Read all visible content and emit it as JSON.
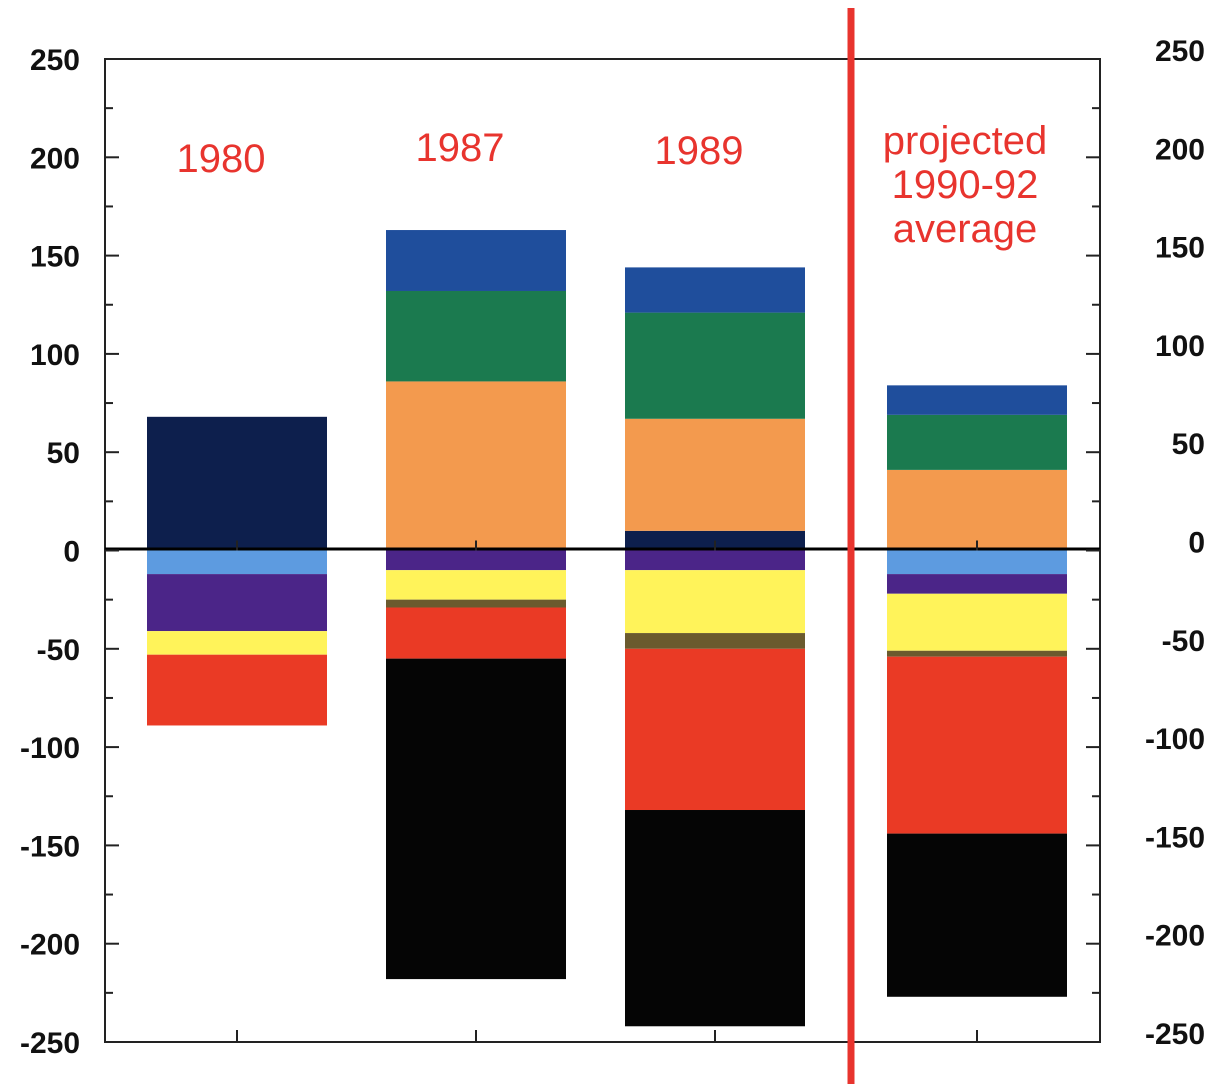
{
  "chart_data": {
    "type": "bar",
    "stacked": true,
    "title": "",
    "xlabel": "",
    "ylabel": "",
    "ylim": [
      -250,
      250
    ],
    "yticks": [
      "250",
      "200",
      "150",
      "100",
      "50",
      "0",
      "-50",
      "-100",
      "-150",
      "-200",
      "-250"
    ],
    "right_axis_ticks": [
      "250",
      "200",
      "150",
      "100",
      "50",
      "0",
      "-50",
      "-100",
      "-150",
      "-200",
      "-250"
    ],
    "grid": false,
    "legend": "none",
    "divider_after_category": 3,
    "categories": [
      {
        "label_lines": [
          "1980"
        ]
      },
      {
        "label_lines": [
          "1987"
        ]
      },
      {
        "label_lines": [
          "1989"
        ]
      },
      {
        "label_lines": [
          "projected",
          "1990-92",
          "average"
        ]
      }
    ],
    "colors": {
      "label": "#e8342e",
      "divider": "#e8342e",
      "navy": "#0d1f4d",
      "blue": "#1f4e9c",
      "green": "#1b7a4f",
      "orange": "#f39a4e",
      "light-blue": "#5d9be0",
      "purple": "#4b2588",
      "yellow": "#fff35a",
      "olive": "#6b5a2e",
      "red": "#ea3a25",
      "black": "#050505"
    },
    "stacks": [
      {
        "positive": [
          {
            "color": "navy",
            "value": 68
          }
        ],
        "negative": [
          {
            "color": "light-blue",
            "value": -12
          },
          {
            "color": "purple",
            "value": -29
          },
          {
            "color": "yellow",
            "value": -12
          },
          {
            "color": "red",
            "value": -36
          }
        ]
      },
      {
        "positive": [
          {
            "color": "orange",
            "value": 86
          },
          {
            "color": "green",
            "value": 46
          },
          {
            "color": "blue",
            "value": 31
          }
        ],
        "negative": [
          {
            "color": "purple",
            "value": -10
          },
          {
            "color": "yellow",
            "value": -15
          },
          {
            "color": "olive",
            "value": -4
          },
          {
            "color": "red",
            "value": -26
          },
          {
            "color": "black",
            "value": -163
          }
        ]
      },
      {
        "positive": [
          {
            "color": "navy",
            "value": 10
          },
          {
            "color": "orange",
            "value": 57
          },
          {
            "color": "green",
            "value": 54
          },
          {
            "color": "blue",
            "value": 23
          }
        ],
        "negative": [
          {
            "color": "purple",
            "value": -10
          },
          {
            "color": "yellow",
            "value": -32
          },
          {
            "color": "olive",
            "value": -8
          },
          {
            "color": "red",
            "value": -82
          },
          {
            "color": "black",
            "value": -110
          }
        ]
      },
      {
        "positive": [
          {
            "color": "orange",
            "value": 41
          },
          {
            "color": "green",
            "value": 28
          },
          {
            "color": "blue",
            "value": 15
          }
        ],
        "negative": [
          {
            "color": "light-blue",
            "value": -12
          },
          {
            "color": "purple",
            "value": -10
          },
          {
            "color": "yellow",
            "value": -29
          },
          {
            "color": "olive",
            "value": -3
          },
          {
            "color": "red",
            "value": -90
          },
          {
            "color": "black",
            "value": -83
          }
        ]
      }
    ]
  }
}
